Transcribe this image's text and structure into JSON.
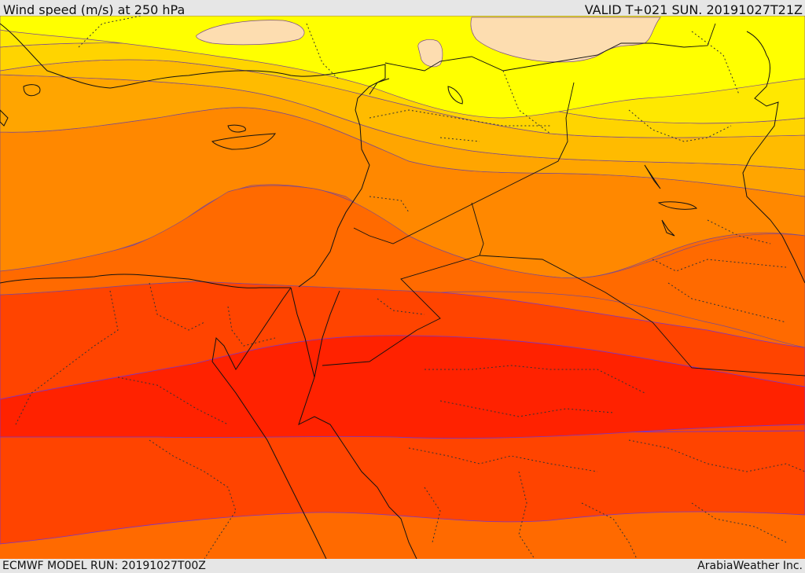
{
  "header": {
    "title": "Wind speed (m/s) at 250 hPa",
    "valid": "VALID T+021 SUN. 20191027T21Z"
  },
  "footer": {
    "model_run": "ECMWF MODEL RUN: 20191027T00Z",
    "credit": "ArabiaWeather Inc."
  },
  "palette": {
    "band_peach": "#fdddb0",
    "band_yellow": "#ffff00",
    "band_yellow2": "#ffe800",
    "band_gold": "#ffd400",
    "band_amber": "#ffbb00",
    "band_orange1": "#ffa500",
    "band_orange2": "#ff8800",
    "band_orange3": "#ff6a00",
    "band_red1": "#ff4400",
    "band_red2": "#ff2200"
  }
}
